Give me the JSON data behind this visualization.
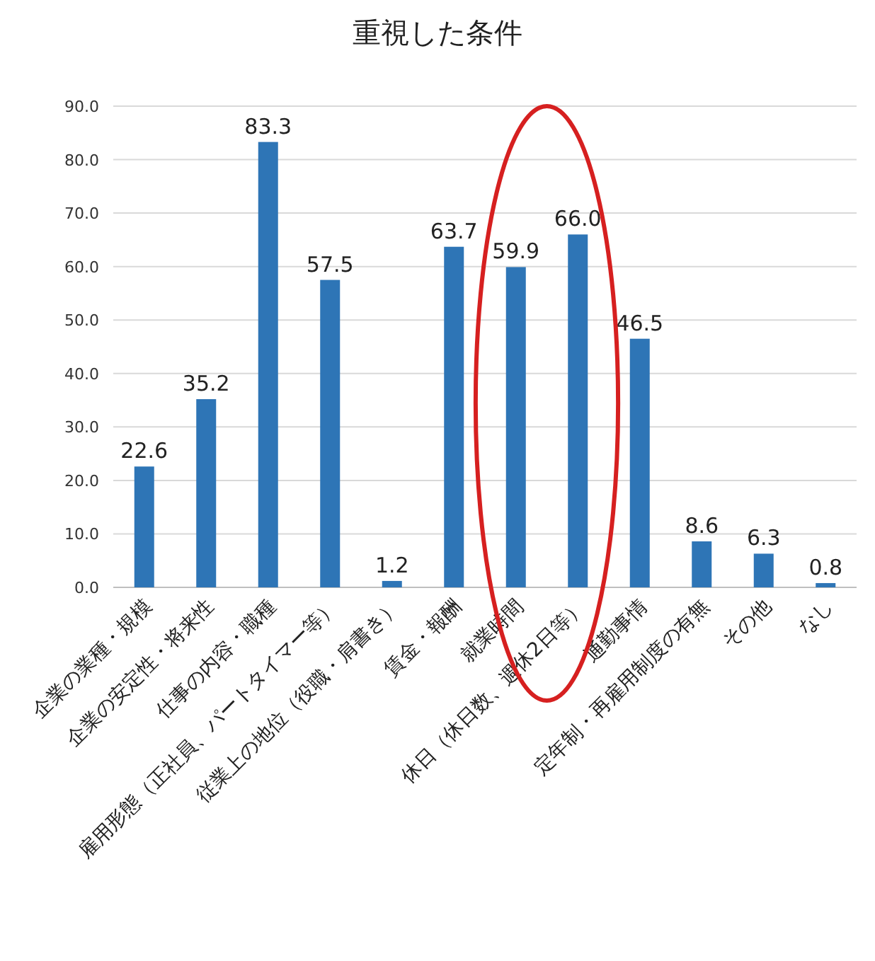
{
  "chart_data": {
    "type": "bar",
    "title": "重視した条件",
    "categories": [
      "企業の業種・規模",
      "企業の安定性・将来性",
      "仕事の内容・職種",
      "雇用形態（正社員、パートタイマー等）",
      "従業上の地位（役職・肩書き）",
      "賃金・報酬",
      "就業時間",
      "休日（休日数、週休2日等）",
      "通勤事情",
      "定年制・再雇用制度の有無",
      "その他",
      "なし"
    ],
    "values": [
      22.6,
      35.2,
      83.3,
      57.5,
      1.2,
      63.7,
      59.9,
      66.0,
      46.5,
      8.6,
      6.3,
      0.8
    ],
    "value_labels": [
      "22.6",
      "35.2",
      "83.3",
      "57.5",
      "1.2",
      "63.7",
      "59.9",
      "66.0",
      "46.5",
      "8.6",
      "6.3",
      "0.8"
    ],
    "color": "#2e75b6",
    "ylim": [
      0,
      90
    ],
    "yticks": [
      {
        "value": 0,
        "label": "0.0"
      },
      {
        "value": 10,
        "label": "10.0"
      },
      {
        "value": 20,
        "label": "20.0"
      },
      {
        "value": 30,
        "label": "30.0"
      },
      {
        "value": 40,
        "label": "40.0"
      },
      {
        "value": 50,
        "label": "50.0"
      },
      {
        "value": 60,
        "label": "60.0"
      },
      {
        "value": 70,
        "label": "70.0"
      },
      {
        "value": 80,
        "label": "80.0"
      },
      {
        "value": 90,
        "label": "90.0"
      }
    ],
    "grid": "y"
  }
}
